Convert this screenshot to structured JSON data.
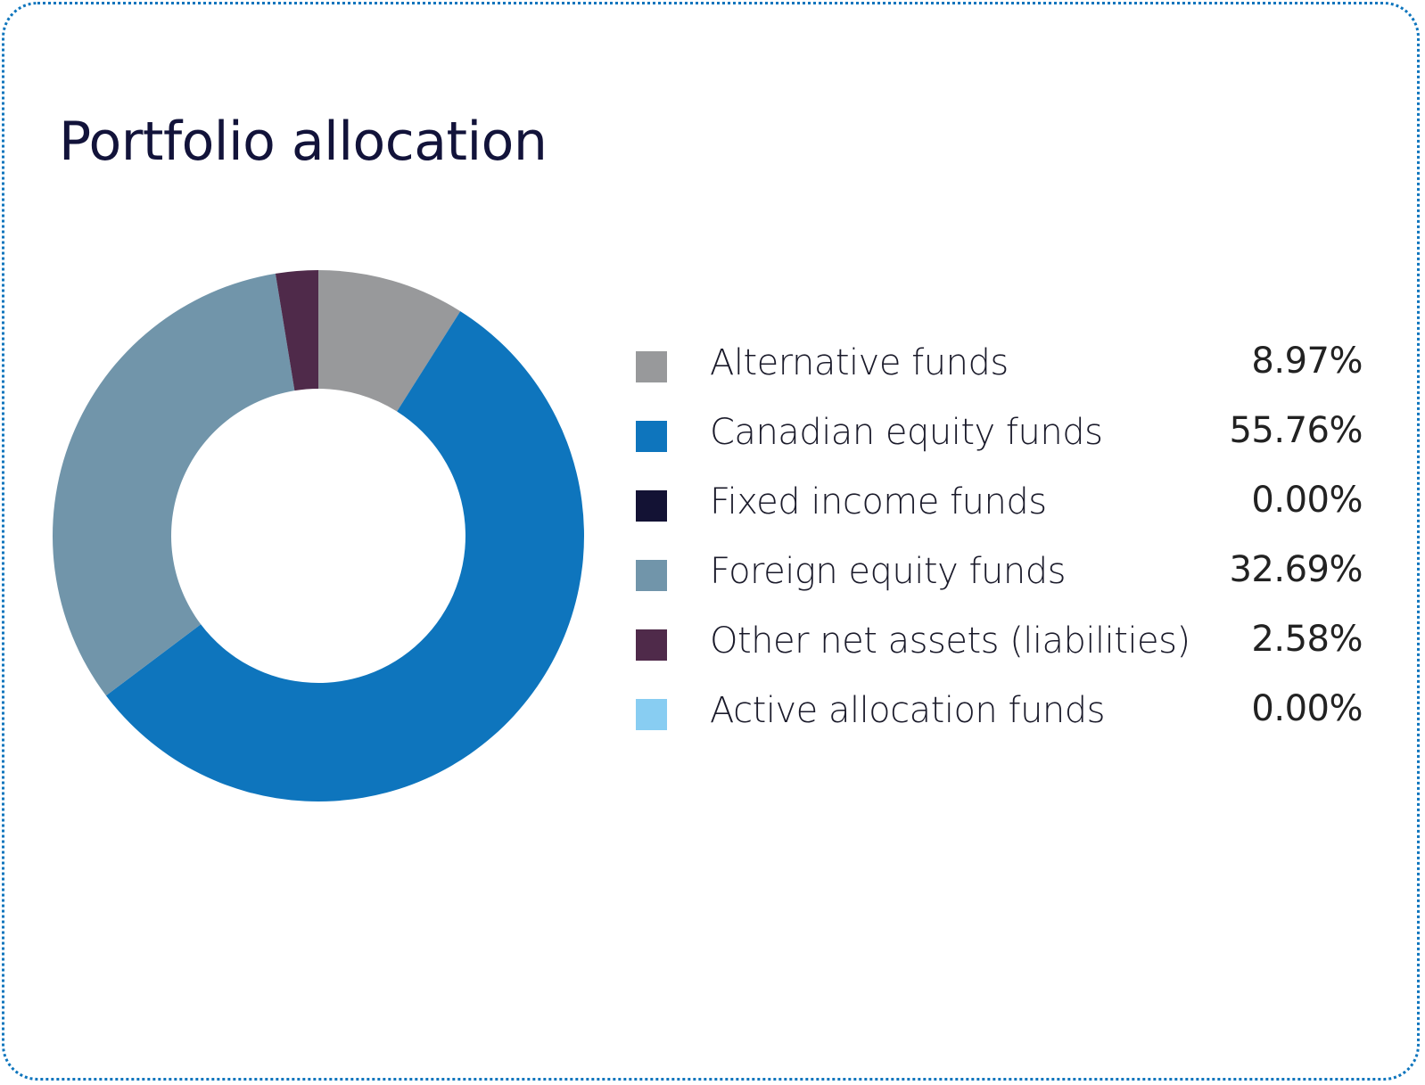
{
  "chart_data": {
    "type": "pie",
    "subtype": "donut",
    "title": "Portfolio allocation",
    "start_angle": "top, clockwise",
    "series": [
      {
        "name": "Alternative funds",
        "value": 8.97,
        "label": "8.97%",
        "color": "#98999b"
      },
      {
        "name": "Canadian equity funds",
        "value": 55.76,
        "label": "55.76%",
        "color": "#0e75bd"
      },
      {
        "name": "Fixed income funds",
        "value": 0.0,
        "label": "0.00%",
        "color": "#131234"
      },
      {
        "name": "Foreign equity funds",
        "value": 32.69,
        "label": "32.69%",
        "color": "#7195aa"
      },
      {
        "name": "Other net assets (liabilities)",
        "value": 2.58,
        "label": "2.58%",
        "color": "#4f2a4a"
      },
      {
        "name": "Active allocation funds",
        "value": 0.0,
        "label": "0.00%",
        "color": "#88cdf2"
      }
    ],
    "legend_position": "right"
  },
  "colors": {
    "border": "#0e75bd",
    "title": "#12133a"
  }
}
